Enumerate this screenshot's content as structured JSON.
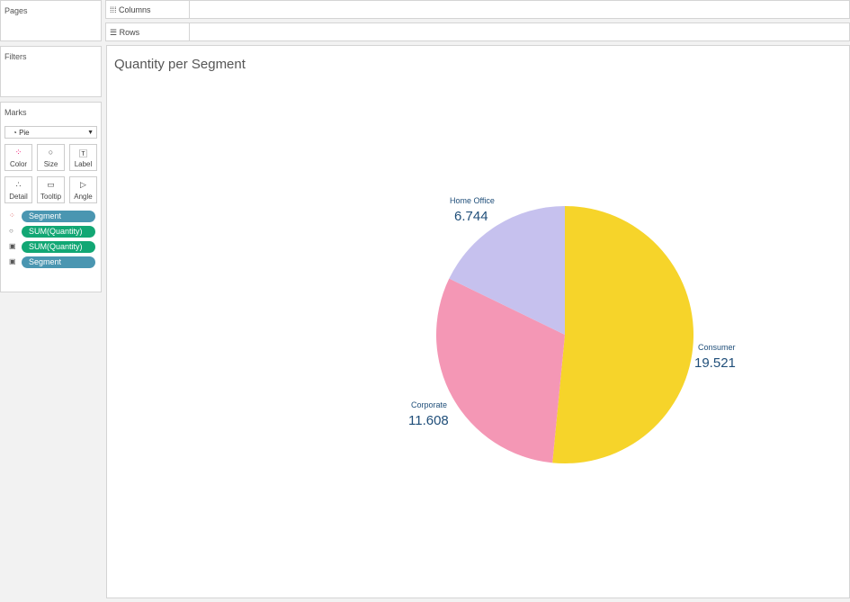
{
  "shelves": {
    "pages": "Pages",
    "filters": "Filters",
    "marks": "Marks",
    "columns": "Columns",
    "rows": "Rows"
  },
  "marks": {
    "type": "Pie",
    "buttons": [
      "Color",
      "Size",
      "Label",
      "Detail",
      "Tooltip",
      "Angle"
    ],
    "pills": [
      {
        "label": "Segment",
        "color": "#4a96b1",
        "icon": "color-icon"
      },
      {
        "label": "SUM(Quantity)",
        "color": "#12a774",
        "icon": "size-icon"
      },
      {
        "label": "SUM(Quantity)",
        "color": "#12a774",
        "icon": "label-icon"
      },
      {
        "label": "Segment",
        "color": "#4a96b1",
        "icon": "label-icon"
      }
    ]
  },
  "chart_data": {
    "type": "pie",
    "title": "Quantity per Segment",
    "categories": [
      "Consumer",
      "Corporate",
      "Home Office"
    ],
    "values": [
      19521,
      11608,
      6744
    ],
    "value_labels": [
      "19.521",
      "11.608",
      "6.744"
    ],
    "colors": [
      "#f6d42a",
      "#f497b5",
      "#c6c1ee"
    ]
  }
}
